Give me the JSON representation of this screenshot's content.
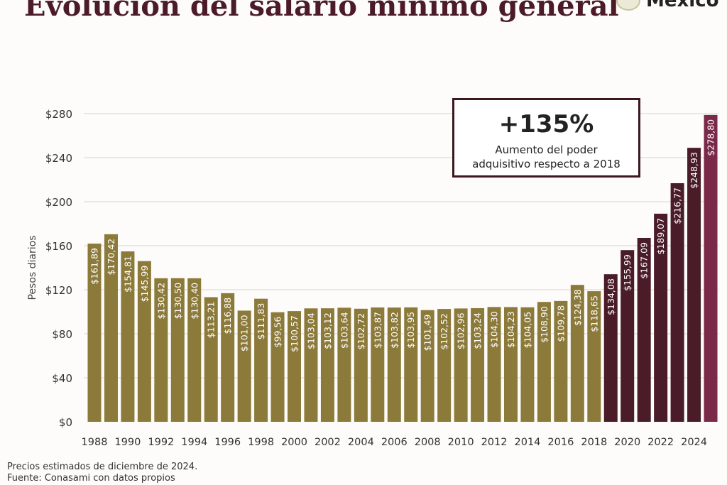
{
  "title": "Evolución del salario mínimo general",
  "logo_text": "México",
  "callout": {
    "headline": "+135%",
    "line1": "Aumento del poder",
    "line2": "adquisitivo respecto a 2018"
  },
  "footnotes": [
    "Precios estimados de diciembre de 2024.",
    "Fuente: Conasami con datos propios"
  ],
  "colors": {
    "title": "#4b1c28",
    "early": "#8c7a3a",
    "recent": "#4a1c28",
    "latest": "#7a2a48"
  },
  "chart_data": {
    "type": "bar",
    "ylabel": "Pesos diarios",
    "ylim": [
      0,
      280
    ],
    "yticks": [
      "$0",
      "$40",
      "$80",
      "$120",
      "$160",
      "$200",
      "$240",
      "$280"
    ],
    "ytick_values": [
      0,
      40,
      80,
      120,
      160,
      200,
      240,
      280
    ],
    "grid": true,
    "xtick_labels": [
      "1988",
      "1990",
      "1992",
      "1994",
      "1996",
      "1998",
      "2000",
      "2002",
      "2004",
      "2006",
      "2008",
      "2010",
      "2012",
      "2014",
      "2016",
      "2018",
      "2020",
      "2022",
      "2024"
    ],
    "categories": [
      "1988",
      "1989",
      "1990",
      "1991",
      "1992",
      "1993",
      "1994",
      "1995",
      "1996",
      "1997",
      "1998",
      "1999",
      "2000",
      "2001",
      "2002",
      "2003",
      "2004",
      "2005",
      "2006",
      "2007",
      "2008",
      "2009",
      "2010",
      "2011",
      "2012",
      "2013",
      "2014",
      "2015",
      "2016",
      "2017",
      "2018",
      "2019",
      "2020",
      "2021",
      "2022",
      "2023",
      "2024",
      "2025"
    ],
    "values": [
      161.89,
      170.42,
      154.81,
      145.99,
      130.42,
      130.5,
      130.4,
      113.21,
      116.88,
      101.0,
      111.83,
      99.56,
      100.57,
      103.04,
      103.12,
      103.64,
      102.72,
      103.87,
      103.82,
      103.95,
      101.49,
      102.52,
      102.96,
      103.24,
      104.3,
      104.23,
      104.05,
      108.9,
      109.78,
      124.38,
      118.65,
      134.08,
      155.99,
      167.09,
      189.07,
      216.77,
      248.93,
      278.8
    ],
    "data_labels": [
      "$161,89",
      "$170,42",
      "$154,81",
      "$145,99",
      "$130,42",
      "$130,50",
      "$130,40",
      "$113,21",
      "$116,88",
      "$101,00",
      "$111,83",
      "$99,56",
      "$100,57",
      "$103,04",
      "$103,12",
      "$103,64",
      "$102,72",
      "$103,87",
      "$103,82",
      "$103,95",
      "$101,49",
      "$102,52",
      "$102,96",
      "$103,24",
      "$104,30",
      "$104,23",
      "$104,05",
      "$108,90",
      "$109,78",
      "$124,38",
      "$118,65",
      "$134,08",
      "$155,99",
      "$167,09",
      "$189,07",
      "$216,77",
      "$248,93",
      "$278,80"
    ]
  }
}
